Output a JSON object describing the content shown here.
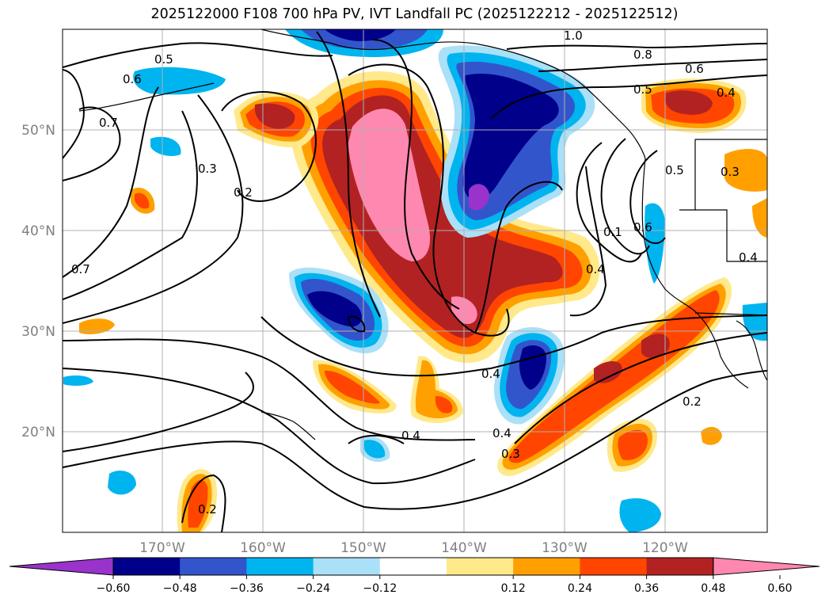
{
  "title": "2025122000 F108 700 hPa PV, IVT Landfall PC (2025122212 - 2025122512)",
  "map": {
    "lat_labels": [
      "50°N",
      "40°N",
      "30°N",
      "20°N"
    ],
    "lon_labels": [
      "170°W",
      "160°W",
      "150°W",
      "140°W",
      "130°W",
      "120°W"
    ],
    "lon_range": [
      -180,
      -110
    ],
    "lat_range": [
      10,
      60
    ],
    "grid": true
  },
  "colorbar": {
    "ticks": [
      "−0.60",
      "−0.48",
      "−0.36",
      "−0.24",
      "−0.12",
      "0.12",
      "0.24",
      "0.36",
      "0.48",
      "0.60"
    ],
    "colors": [
      "#9933cc",
      "#00008b",
      "#3355cc",
      "#00b4ef",
      "#aae0f8",
      "#ffffff",
      "#ffe98a",
      "#ffa000",
      "#ff4500",
      "#b22222",
      "#ff88b0"
    ],
    "extend": "both"
  },
  "contour_labels": [
    "1.0",
    "0.8",
    "0.6",
    "0.5",
    "0.4",
    "0.5",
    "0.6",
    "0.7",
    "0.3",
    "0.2",
    "0.7",
    "0.1",
    "0.6",
    "0.5",
    "0.3",
    "0.4",
    "0.4",
    "0.4",
    "0.4",
    "0.4",
    "0.3",
    "0.2",
    "0.2"
  ]
}
